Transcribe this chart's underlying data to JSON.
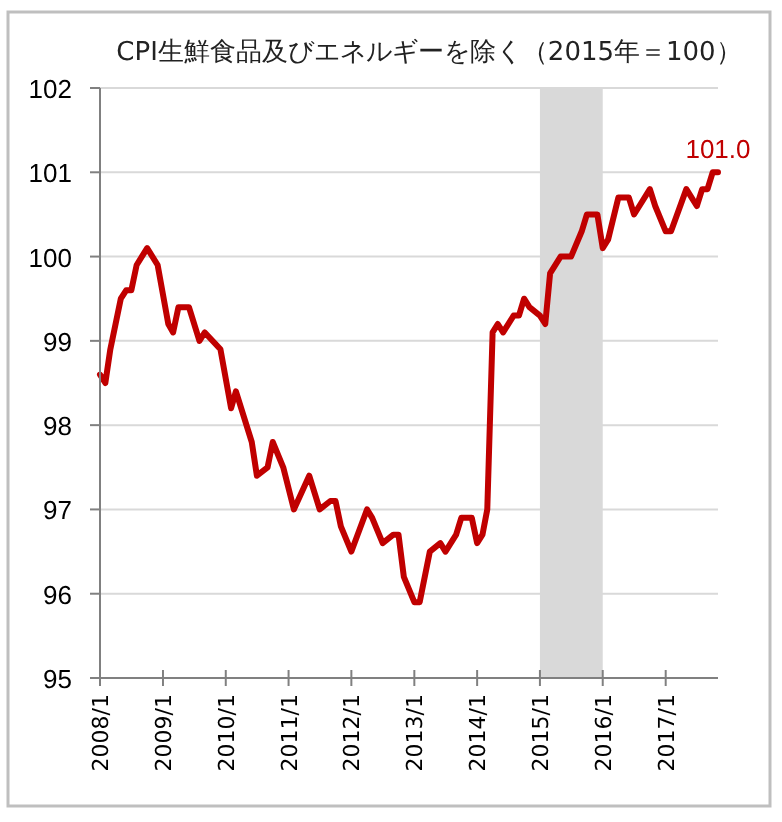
{
  "chart_data": {
    "type": "line",
    "title": "CPI生鮮食品及びエネルギーを除く（2015年＝100）",
    "x": [
      "2008-01",
      "2008-02",
      "2008-03",
      "2008-05",
      "2008-06",
      "2008-07",
      "2008-08",
      "2008-10",
      "2008-12",
      "2009-02",
      "2009-03",
      "2009-04",
      "2009-06",
      "2009-08",
      "2009-09",
      "2009-12",
      "2010-02",
      "2010-03",
      "2010-06",
      "2010-07",
      "2010-09",
      "2010-10",
      "2010-12",
      "2011-02",
      "2011-05",
      "2011-07",
      "2011-09",
      "2011-10",
      "2011-11",
      "2012-01",
      "2012-04",
      "2012-05",
      "2012-07",
      "2012-09",
      "2012-10",
      "2012-11",
      "2013-01",
      "2013-02",
      "2013-04",
      "2013-06",
      "2013-07",
      "2013-09",
      "2013-10",
      "2013-12",
      "2014-01",
      "2014-02",
      "2014-03",
      "2014-04",
      "2014-05",
      "2014-06",
      "2014-08",
      "2014-09",
      "2014-10",
      "2014-11",
      "2015-01",
      "2015-02",
      "2015-03",
      "2015-05",
      "2015-07",
      "2015-09",
      "2015-10",
      "2015-12",
      "2016-01",
      "2016-02",
      "2016-04",
      "2016-06",
      "2016-07",
      "2016-08",
      "2016-10",
      "2016-11",
      "2017-01",
      "2017-02",
      "2017-05",
      "2017-07",
      "2017-08",
      "2017-09",
      "2017-10",
      "2017-11"
    ],
    "series": [
      {
        "color": "#c00000",
        "values": [
          98.6,
          98.5,
          98.9,
          99.5,
          99.6,
          99.6,
          99.9,
          100.1,
          99.9,
          99.2,
          99.1,
          99.4,
          99.4,
          99.0,
          99.1,
          98.9,
          98.2,
          98.4,
          97.8,
          97.4,
          97.5,
          97.8,
          97.5,
          97.0,
          97.4,
          97.0,
          97.1,
          97.1,
          96.8,
          96.5,
          97.0,
          96.9,
          96.6,
          96.7,
          96.7,
          96.2,
          95.9,
          95.9,
          96.5,
          96.6,
          96.5,
          96.7,
          96.9,
          96.9,
          96.6,
          96.7,
          97.0,
          99.1,
          99.2,
          99.1,
          99.3,
          99.3,
          99.5,
          99.4,
          99.3,
          99.2,
          99.8,
          100.0,
          100.0,
          100.3,
          100.5,
          100.5,
          100.1,
          100.2,
          100.7,
          100.7,
          100.5,
          100.6,
          100.8,
          100.6,
          100.3,
          100.3,
          100.8,
          100.6,
          100.8,
          100.8,
          101.0,
          101.0
        ],
        "value_labels": [
          null,
          null,
          null,
          null,
          null,
          null,
          null,
          null,
          null,
          null,
          null,
          null,
          null,
          null,
          null,
          null,
          null,
          null,
          null,
          null,
          null,
          null,
          null,
          null,
          null,
          null,
          null,
          null,
          null,
          null,
          null,
          null,
          null,
          null,
          null,
          null,
          null,
          null,
          null,
          null,
          null,
          null,
          null,
          null,
          null,
          null,
          null,
          null,
          null,
          null,
          null,
          null,
          null,
          null,
          null,
          null,
          null,
          null,
          null,
          null,
          null,
          null,
          null,
          null,
          null,
          null,
          null,
          null,
          null,
          null,
          null,
          null,
          null,
          null,
          null,
          null,
          null,
          "101.0"
        ]
      }
    ],
    "xlim": [
      "2008-01",
      "2017-11"
    ],
    "xticks": [
      {
        "value": "2008-01",
        "label": "2008/1"
      },
      {
        "value": "2009-01",
        "label": "2009/1"
      },
      {
        "value": "2010-01",
        "label": "2010/1"
      },
      {
        "value": "2011-01",
        "label": "2011/1"
      },
      {
        "value": "2012-01",
        "label": "2012/1"
      },
      {
        "value": "2013-01",
        "label": "2013/1"
      },
      {
        "value": "2014-01",
        "label": "2014/1"
      },
      {
        "value": "2015-01",
        "label": "2015/1"
      },
      {
        "value": "2016-01",
        "label": "2016/1"
      },
      {
        "value": "2017-01",
        "label": "2017/1"
      }
    ],
    "ylim": [
      95,
      102
    ],
    "yticks": [
      95,
      96,
      97,
      98,
      99,
      100,
      101,
      102
    ],
    "grid": "y",
    "bands": [
      {
        "axis": "x",
        "from": "2015-01",
        "to": "2016-01",
        "color": "#d9d9d9"
      }
    ]
  }
}
